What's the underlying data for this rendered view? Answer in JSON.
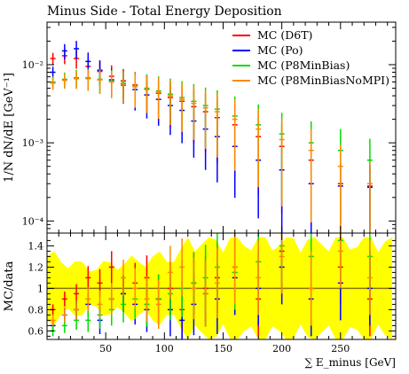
{
  "chart_data": {
    "type": "scatter",
    "title": "Minus Side - Total Energy Deposition",
    "xlabel": "∑ E_minus [GeV]",
    "x_tick_labels": [
      "50",
      "100",
      "150",
      "200",
      "250"
    ],
    "xlim": [
      0,
      297
    ],
    "top_panel": {
      "ylabel": "1/N dN/dE [GeV⁻¹]",
      "y_scale": "log",
      "ylim": [
        7e-05,
        0.035
      ],
      "y_tick_labels": [
        "10⁻⁴",
        "10⁻³",
        "10⁻²"
      ]
    },
    "ratio_panel": {
      "ylabel": "MC/data",
      "ylim": [
        0.52,
        1.52
      ],
      "y_tick_labels": [
        "0.6",
        "0.8",
        "1",
        "1.2",
        "1.4"
      ]
    },
    "legend_position": "top-right",
    "series": [
      {
        "name": "MC (D6T)",
        "color": "#ff0000",
        "x": [
          5,
          15,
          25,
          35,
          45,
          55,
          65,
          75,
          85,
          95,
          105,
          115,
          125,
          135,
          145,
          160,
          180,
          200,
          225,
          250,
          275
        ],
        "y": [
          0.012,
          0.013,
          0.012,
          0.0095,
          0.0082,
          0.0071,
          0.0062,
          0.0055,
          0.0049,
          0.0043,
          0.0038,
          0.0034,
          0.0029,
          0.0025,
          0.0021,
          0.0017,
          0.0012,
          0.0009,
          0.0006,
          0.0003,
          0.00028
        ],
        "ratio": [
          0.8,
          0.9,
          0.95,
          1.1,
          1.05,
          1.2,
          0.95,
          1.05,
          1.1,
          0.9,
          1.0,
          0.8,
          1.05,
          1.0,
          1.1,
          1.2,
          0.9,
          1.35,
          1.0,
          1.2,
          0.9
        ]
      },
      {
        "name": "MC (Po)",
        "color": "#0000ff",
        "x": [
          5,
          15,
          25,
          35,
          45,
          55,
          65,
          75,
          85,
          95,
          105,
          115,
          125,
          135,
          145,
          160,
          180,
          200,
          225,
          250,
          275
        ],
        "y": [
          0.008,
          0.015,
          0.016,
          0.011,
          0.0085,
          0.0064,
          0.0055,
          0.0048,
          0.0041,
          0.0036,
          0.003,
          0.0026,
          0.0019,
          0.0015,
          0.0012,
          0.0009,
          0.0006,
          0.00045,
          0.0003,
          0.00028,
          0.00027
        ],
        "ratio": [
          0.65,
          0.75,
          0.8,
          0.85,
          0.7,
          0.9,
          0.95,
          0.85,
          0.8,
          0.9,
          0.8,
          0.7,
          0.85,
          0.95,
          0.9,
          1.1,
          1.0,
          1.2,
          0.9,
          1.05,
          1.0
        ]
      },
      {
        "name": "MC (P8MinBias)",
        "color": "#00dd00",
        "x": [
          5,
          15,
          25,
          35,
          45,
          55,
          65,
          75,
          85,
          95,
          105,
          115,
          125,
          135,
          145,
          160,
          180,
          200,
          225,
          250,
          275
        ],
        "y": [
          0.006,
          0.0065,
          0.0068,
          0.0068,
          0.0065,
          0.0062,
          0.0058,
          0.0054,
          0.005,
          0.0046,
          0.0042,
          0.0038,
          0.0034,
          0.003,
          0.0027,
          0.0022,
          0.0017,
          0.0013,
          0.001,
          0.0008,
          0.0006
        ],
        "ratio": [
          0.6,
          0.65,
          0.7,
          0.7,
          0.75,
          0.8,
          0.85,
          0.9,
          0.85,
          0.9,
          0.95,
          1.0,
          1.05,
          1.1,
          1.2,
          1.15,
          1.25,
          1.4,
          1.3,
          1.45,
          1.3
        ]
      },
      {
        "name": "MC (P8MinBiasNoMPI)",
        "color": "#ff8800",
        "x": [
          5,
          15,
          25,
          35,
          45,
          55,
          65,
          75,
          85,
          95,
          105,
          115,
          125,
          135,
          145,
          160,
          180,
          200,
          225,
          250,
          275
        ],
        "y": [
          0.0058,
          0.0063,
          0.0066,
          0.0066,
          0.0064,
          0.006,
          0.0056,
          0.0052,
          0.0048,
          0.0044,
          0.004,
          0.0036,
          0.0032,
          0.0028,
          0.0025,
          0.002,
          0.0015,
          0.0011,
          0.0008,
          0.0005,
          0.0003
        ],
        "ratio": [
          0.7,
          0.75,
          0.8,
          0.9,
          0.85,
          0.9,
          1.1,
          1.0,
          0.9,
          0.85,
          1.15,
          1.2,
          1.0,
          0.95,
          1.05,
          1.2,
          1.1,
          1.3,
          1.0,
          1.35,
          1.1
        ]
      }
    ]
  }
}
